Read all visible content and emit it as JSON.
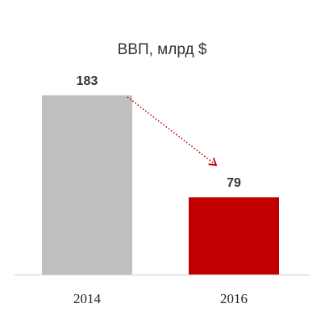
{
  "chart_data": {
    "type": "bar",
    "title": "ВВП, млрд $",
    "xlabel": "",
    "ylabel": "",
    "categories": [
      "2014",
      "2016"
    ],
    "values": [
      183,
      79
    ],
    "value_labels": [
      "183",
      "79"
    ],
    "ylim": [
      0,
      183
    ],
    "grid": false,
    "legend": "none",
    "colors": [
      "#bfbfbf",
      "#c00000"
    ],
    "annotation": {
      "type": "dotted-arrow",
      "from": "2014",
      "to": "2016",
      "color": "#c00000"
    }
  }
}
